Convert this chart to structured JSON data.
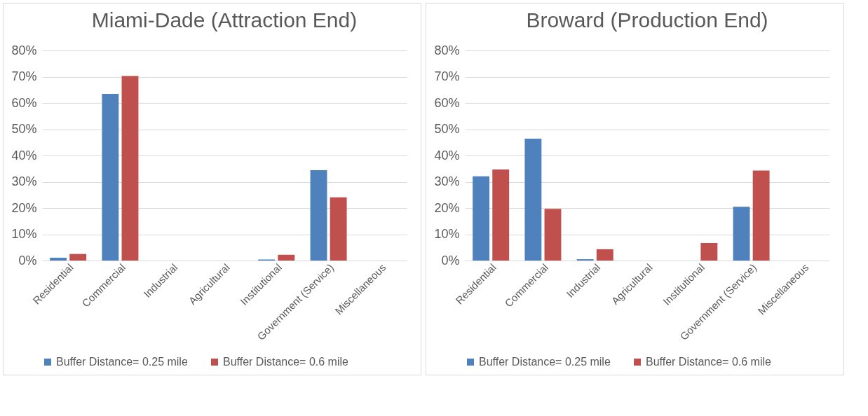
{
  "chart_data": [
    {
      "type": "bar",
      "title": "Miami-Dade (Attraction End)",
      "categories": [
        "Residential",
        "Commercial",
        "Industrial",
        "Agricultural",
        "Institutional",
        "Government (Service)",
        "Miscellaneous"
      ],
      "series": [
        {
          "name": "Buffer Distance= 0.25 mile",
          "color": "#4f81bd",
          "values": [
            1.1,
            63.5,
            0,
            0,
            0.4,
            34.4,
            0
          ]
        },
        {
          "name": "Buffer Distance= 0.6 mile",
          "color": "#c0504d",
          "values": [
            2.5,
            70.3,
            0,
            0,
            2.2,
            24.1,
            0
          ]
        }
      ],
      "ylim": [
        0,
        80
      ],
      "yticks": [
        {
          "value": 0,
          "label": "0%"
        },
        {
          "value": 10,
          "label": "10%"
        },
        {
          "value": 20,
          "label": "20%"
        },
        {
          "value": 30,
          "label": "30%"
        },
        {
          "value": 40,
          "label": "40%"
        },
        {
          "value": 50,
          "label": "50%"
        },
        {
          "value": 60,
          "label": "60%"
        },
        {
          "value": 70,
          "label": "70%"
        },
        {
          "value": 80,
          "label": "80%"
        }
      ],
      "grid": "y",
      "legend": "bottom"
    },
    {
      "type": "bar",
      "title": "Broward (Production End)",
      "categories": [
        "Residential",
        "Commercial",
        "Industrial",
        "Agricultural",
        "Institutional",
        "Government (Service)",
        "Miscellaneous"
      ],
      "series": [
        {
          "name": "Buffer Distance= 0.25 mile",
          "color": "#4f81bd",
          "values": [
            32.1,
            46.4,
            0.5,
            0,
            0,
            20.5,
            0
          ]
        },
        {
          "name": "Buffer Distance= 0.6 mile",
          "color": "#c0504d",
          "values": [
            34.7,
            19.7,
            4.3,
            0,
            6.7,
            34.3,
            0
          ]
        }
      ],
      "ylim": [
        0,
        80
      ],
      "yticks": [
        {
          "value": 0,
          "label": "0%"
        },
        {
          "value": 10,
          "label": "10%"
        },
        {
          "value": 20,
          "label": "20%"
        },
        {
          "value": 30,
          "label": "30%"
        },
        {
          "value": 40,
          "label": "40%"
        },
        {
          "value": 50,
          "label": "50%"
        },
        {
          "value": 60,
          "label": "60%"
        },
        {
          "value": 70,
          "label": "70%"
        },
        {
          "value": 80,
          "label": "80%"
        }
      ],
      "grid": "y",
      "legend": "bottom"
    }
  ]
}
